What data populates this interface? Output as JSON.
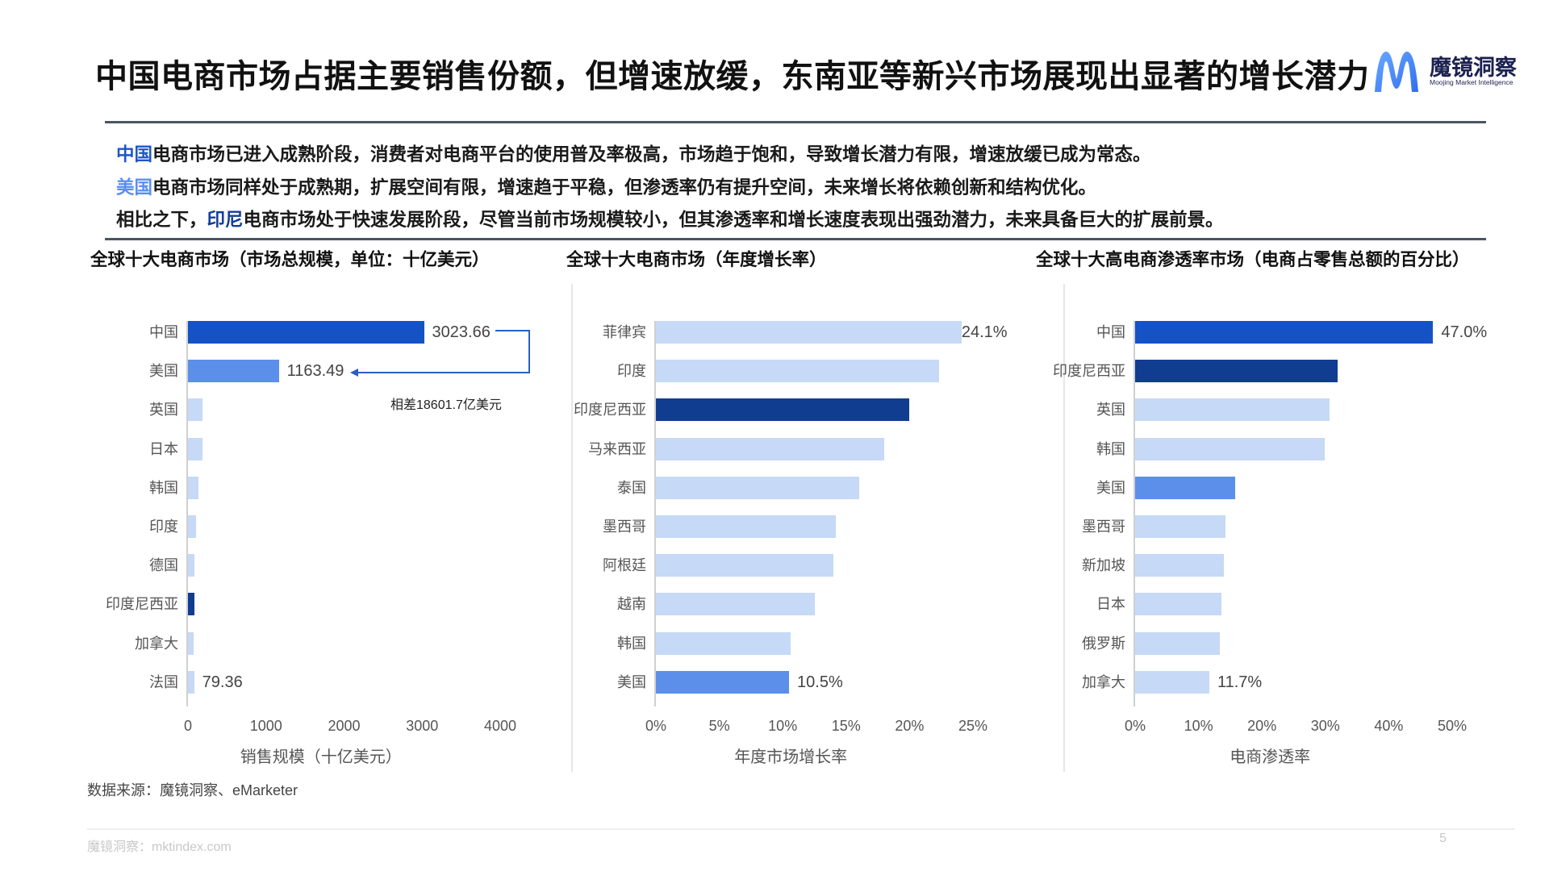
{
  "header": {
    "title": "中国电商市场占据主要销售份额，但增速放缓，东南亚等新兴市场展现出显著的增长潜力",
    "logo": {
      "name": "魔镜洞察",
      "subtitle": "Moojing Market Intelligence",
      "icon": "m-logo-icon"
    }
  },
  "summary": [
    {
      "highlight": "中国",
      "highlight_color": "#1f55c8",
      "prefix": "",
      "text": "电商市场已进入成熟阶段，消费者对电商平台的使用普及率极高，市场趋于饱和，导致增长潜力有限，增速放缓已成为常态。"
    },
    {
      "highlight": "美国",
      "highlight_color": "#5a8ef0",
      "prefix": "",
      "text": "电商市场同样处于成熟期，扩展空间有限，增速趋于平稳，但渗透率仍有提升空间，未来增长将依赖创新和结构优化。"
    },
    {
      "highlight": "印尼",
      "highlight_color": "#123e96",
      "prefix": "相比之下，",
      "text": "电商市场处于快速发展阶段，尽管当前市场规模较小，但其渗透率和增长速度表现出强劲潜力，未来具备巨大的扩展前景。"
    }
  ],
  "colors": {
    "china": "#1552c6",
    "usa": "#5b8fea",
    "indonesia": "#113d91",
    "other": "#c6d9f6"
  },
  "chart_data": [
    {
      "type": "bar",
      "orientation": "horizontal",
      "title": "全球十大电商市场（市场总规模，单位：十亿美元）",
      "categories": [
        "中国",
        "美国",
        "英国",
        "日本",
        "韩国",
        "印度",
        "德国",
        "印度尼西亚",
        "加拿大",
        "法国"
      ],
      "values": [
        3023.66,
        1163.49,
        182,
        182,
        137,
        105,
        85,
        85,
        77,
        79.36
      ],
      "value_labels": [
        "3023.66",
        "1163.49",
        "",
        "",
        "",
        "",
        "",
        "",
        "",
        "79.36"
      ],
      "bar_colors": [
        "#1552c6",
        "#5b8fea",
        "#c6d9f6",
        "#c6d9f6",
        "#c6d9f6",
        "#c6d9f6",
        "#c6d9f6",
        "#113d91",
        "#c6d9f6",
        "#c6d9f6"
      ],
      "xlabel": "销售规模（十亿美元）",
      "ylabel": "",
      "xlim": [
        0,
        4000
      ],
      "xticks": [
        "0",
        "1000",
        "2000",
        "3000",
        "4000"
      ],
      "grid": false,
      "annotation": "相差18601.7亿美元"
    },
    {
      "type": "bar",
      "orientation": "horizontal",
      "title": "全球十大电商市场（年度增长率）",
      "categories": [
        "菲律宾",
        "印度",
        "印度尼西亚",
        "马来西亚",
        "泰国",
        "墨西哥",
        "阿根廷",
        "越南",
        "韩国",
        "美国"
      ],
      "values": [
        24.1,
        22.3,
        20.0,
        18.0,
        16.0,
        14.2,
        14.0,
        12.5,
        10.6,
        10.5
      ],
      "value_labels": [
        "24.1%",
        "",
        "",
        "",
        "",
        "",
        "",
        "",
        "",
        "10.5%"
      ],
      "bar_colors": [
        "#c6d9f6",
        "#c6d9f6",
        "#113d91",
        "#c6d9f6",
        "#c6d9f6",
        "#c6d9f6",
        "#c6d9f6",
        "#c6d9f6",
        "#c6d9f6",
        "#5b8fea"
      ],
      "xlabel": "年度市场增长率",
      "ylabel": "",
      "xlim": [
        0,
        25
      ],
      "xticks": [
        "0%",
        "5%",
        "10%",
        "15%",
        "20%",
        "25%"
      ],
      "grid": false
    },
    {
      "type": "bar",
      "orientation": "horizontal",
      "title": "全球十大高电商渗透率市场（电商占零售总额的百分比）",
      "categories": [
        "中国",
        "印度尼西亚",
        "英国",
        "韩国",
        "美国",
        "墨西哥",
        "新加坡",
        "日本",
        "俄罗斯",
        "加拿大"
      ],
      "values": [
        47.0,
        31.9,
        30.6,
        29.9,
        15.8,
        14.2,
        14.0,
        13.6,
        13.3,
        11.7
      ],
      "value_labels": [
        "47.0%",
        "",
        "",
        "",
        "",
        "",
        "",
        "",
        "",
        "11.7%"
      ],
      "bar_colors": [
        "#1552c6",
        "#113d91",
        "#c6d9f6",
        "#c6d9f6",
        "#5b8fea",
        "#c6d9f6",
        "#c6d9f6",
        "#c6d9f6",
        "#c6d9f6",
        "#c6d9f6"
      ],
      "xlabel": "电商渗透率",
      "ylabel": "",
      "xlim": [
        0,
        50
      ],
      "xticks": [
        "0%",
        "10%",
        "20%",
        "30%",
        "40%",
        "50%"
      ],
      "grid": false
    }
  ],
  "footer": {
    "source": "数据来源：魔镜洞察、eMarketer",
    "site": "魔镜洞察：mktindex.com",
    "page": "5"
  }
}
